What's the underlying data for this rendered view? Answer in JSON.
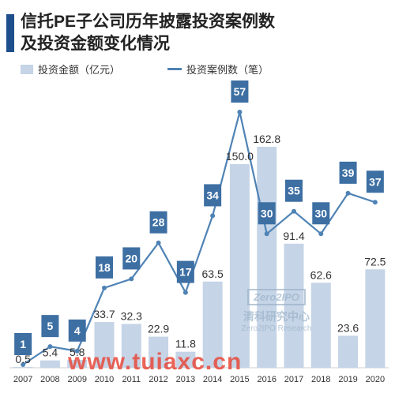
{
  "title_lines": [
    "信托PE子公司历年披露投资案例数",
    "及投资金额变化情况"
  ],
  "chart_data": {
    "type": "bar",
    "categories": [
      "2007",
      "2008",
      "2009",
      "2010",
      "2011",
      "2012",
      "2013",
      "2014",
      "2015",
      "2016",
      "2017",
      "2018",
      "2019",
      "2020"
    ],
    "series": [
      {
        "name": "投资金额（亿元）",
        "type": "bar",
        "values": [
          0.5,
          5.4,
          5.8,
          33.7,
          32.3,
          22.9,
          11.8,
          63.5,
          150.0,
          162.8,
          91.4,
          62.6,
          23.6,
          72.5
        ],
        "labels": [
          "0.5",
          "5.4",
          "5.8",
          "33.7",
          "32.3",
          "22.9",
          "11.8",
          "63.5",
          "150.0",
          "162.8",
          "91.4",
          "62.6",
          "23.6",
          "72.5"
        ]
      },
      {
        "name": "投资案例数（笔）",
        "type": "line",
        "values": [
          1,
          5,
          4,
          18,
          20,
          28,
          17,
          34,
          57,
          30,
          35,
          30,
          39,
          37
        ]
      }
    ],
    "colors": {
      "bar": "#c5d4e6",
      "line": "#4f83b5",
      "badge": "#3d6fa3",
      "title_bar": "#1f4e8c"
    }
  },
  "watermark": {
    "logo": "Zero2IPO",
    "cn": "清科研究中心",
    "en": "Zero2IPO Research",
    "site": "www.tuiaxc.cn"
  }
}
